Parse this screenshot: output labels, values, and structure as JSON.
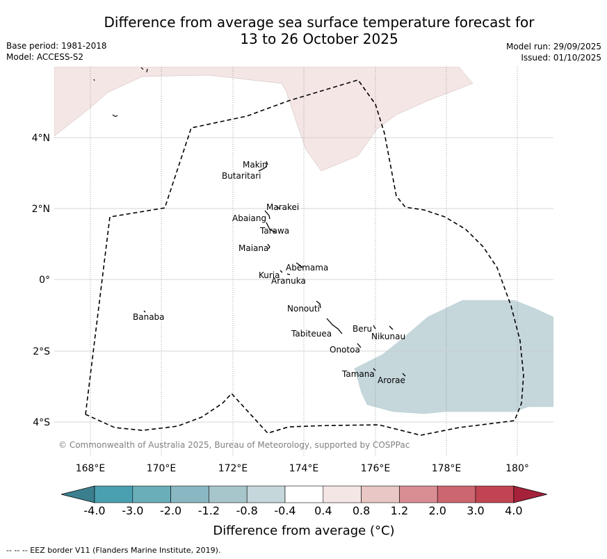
{
  "title_line1": "Difference from average sea surface temperature forecast for",
  "title_line2": "13 to 26 October 2025",
  "base_period": "Base period: 1981-2018",
  "model": "Model: ACCESS-S2",
  "model_run": "Model run: 29/09/2025",
  "issued": "Issued: 01/10/2025",
  "copyright": "© Commonwealth of Australia 2025, Bureau of Meteorology, supported by COSPPac",
  "lon_ticks": [
    "168°E",
    "170°E",
    "172°E",
    "174°E",
    "176°E",
    "178°E",
    "180°"
  ],
  "lat_ticks": [
    "4°N",
    "2°N",
    "0°",
    "2°S",
    "4°S"
  ],
  "islands": [
    "Makin",
    "Butaritari",
    "Marakei",
    "Abaiang",
    "Tarawa",
    "Maiana",
    "Abemama",
    "Kuria",
    "Aranuka",
    "Nonouti",
    "Banaba",
    "Beru",
    "Nikunau",
    "Tabiteuea",
    "Onotoa",
    "Tamana",
    "Arorae"
  ],
  "colorbar": {
    "ticks": [
      "-4.0",
      "-3.0",
      "-2.0",
      "-1.2",
      "-0.8",
      "-0.4",
      "0.4",
      "0.8",
      "1.2",
      "2.0",
      "3.0",
      "4.0"
    ],
    "colors": [
      "#3b7f8e",
      "#4aa0b0",
      "#6aaeba",
      "#89b8c2",
      "#a7c6cc",
      "#c5d7db",
      "#ffffff",
      "#f4e6e5",
      "#e8c7c4",
      "#d98e94",
      "#cc6670",
      "#c24452",
      "#a6213a"
    ],
    "label": "Difference from average (°C)"
  },
  "footnote": "--  --  -- EEZ border V11 (Flanders Marine Institute, 2019).",
  "shading_colors": {
    "warm": "#f4e6e5",
    "cool": "#c5d7db"
  }
}
